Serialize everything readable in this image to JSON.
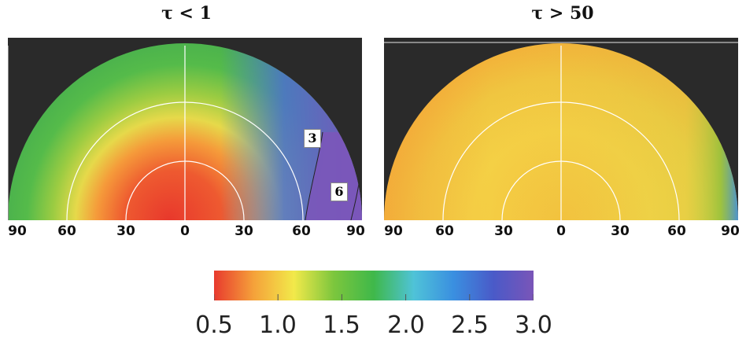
{
  "panels": {
    "left": {
      "title": "τ < 1",
      "contour_labels": [
        "3",
        "6"
      ]
    },
    "right": {
      "title": "τ > 50"
    }
  },
  "angle_ticks": [
    "90",
    "60",
    "30",
    "0",
    "30",
    "60",
    "90"
  ],
  "colorbar": {
    "labels": [
      "0.5",
      "1.0",
      "1.5",
      "2.0",
      "2.5",
      "3.0"
    ],
    "colors": [
      "#e83a2e",
      "#f5a23a",
      "#f2e94a",
      "#7cc63d",
      "#3fb84a",
      "#4fc3d8",
      "#3a8fe0",
      "#4a5ac8",
      "#7a55b8"
    ]
  },
  "colors": {
    "background": "#2a2a2a",
    "ring_lines": "#ffffff"
  }
}
